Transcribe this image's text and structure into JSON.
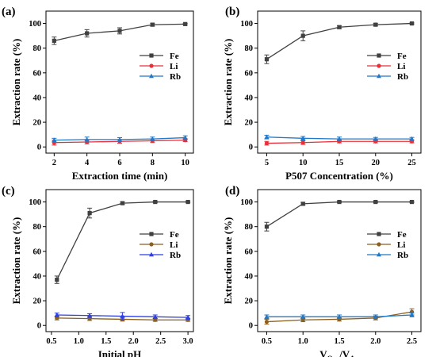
{
  "chart_data": [
    {
      "type": "line",
      "panel_label": "(a)",
      "xlabel": "Extraction time (min)",
      "ylabel": "Extraction rate (%)",
      "xlim": [
        1.5,
        10.5
      ],
      "ylim": [
        -5,
        110
      ],
      "xticks": [
        2,
        4,
        6,
        8,
        10
      ],
      "yticks": [
        0,
        20,
        40,
        60,
        80,
        100
      ],
      "x": [
        2,
        4,
        6,
        8,
        10
      ],
      "legend_position": "right-middle",
      "series": [
        {
          "name": "Fe",
          "color": "#404040",
          "marker": "square",
          "values": [
            86,
            92,
            94,
            99,
            99.5
          ],
          "errors": [
            3,
            3,
            2.5,
            1.2,
            0.6
          ]
        },
        {
          "name": "Li",
          "color": "#e8303a",
          "marker": "circle",
          "values": [
            3.5,
            4,
            4.5,
            5,
            5.5
          ],
          "errors": [
            2,
            1.5,
            1.5,
            1.5,
            1.2
          ]
        },
        {
          "name": "Rb",
          "color": "#1f78c8",
          "marker": "triangle",
          "values": [
            5.5,
            6,
            6,
            6.5,
            7.5
          ],
          "errors": [
            1.5,
            2,
            1.5,
            1.5,
            1.5
          ]
        }
      ]
    },
    {
      "type": "line",
      "panel_label": "(b)",
      "xlabel": "P507 Concentration (%)",
      "ylabel": "Extraction rate (%)",
      "xlim": [
        3.75,
        26.25
      ],
      "ylim": [
        -5,
        110
      ],
      "xticks": [
        5,
        10,
        15,
        20,
        25
      ],
      "yticks": [
        0,
        20,
        40,
        60,
        80,
        100
      ],
      "x": [
        5,
        10,
        15,
        20,
        25
      ],
      "legend_position": "right-middle",
      "series": [
        {
          "name": "Fe",
          "color": "#404040",
          "marker": "square",
          "values": [
            71,
            90,
            97,
            99,
            100
          ],
          "errors": [
            3.5,
            4,
            1.2,
            1,
            0.5
          ]
        },
        {
          "name": "Li",
          "color": "#e8303a",
          "marker": "circle",
          "values": [
            3,
            3.5,
            4.5,
            4.5,
            4.5
          ],
          "errors": [
            1.5,
            1.5,
            1.2,
            1.2,
            1.2
          ]
        },
        {
          "name": "Rb",
          "color": "#1f78c8",
          "marker": "triangle",
          "values": [
            8,
            7,
            6.5,
            6.5,
            6.5
          ],
          "errors": [
            1.5,
            1.5,
            1.5,
            1.2,
            1.2
          ]
        }
      ]
    },
    {
      "type": "line",
      "panel_label": "(c)",
      "xlabel": "Initial pH",
      "ylabel": "Extraction rate (%)",
      "xlim": [
        0.4,
        3.1
      ],
      "ylim": [
        -5,
        110
      ],
      "xticks": [
        0.5,
        1.0,
        1.5,
        2.0,
        2.5,
        3.0
      ],
      "yticks": [
        0,
        20,
        40,
        60,
        80,
        100
      ],
      "x": [
        0.6,
        1.2,
        1.8,
        2.4,
        3.0
      ],
      "legend_position": "right-middle",
      "series": [
        {
          "name": "Fe",
          "color": "#404040",
          "marker": "square",
          "values": [
            37,
            91,
            99,
            100,
            100
          ],
          "errors": [
            3,
            4,
            1,
            0.5,
            0.5
          ]
        },
        {
          "name": "Li",
          "color": "#8b6020",
          "marker": "circle",
          "values": [
            6,
            5.5,
            5,
            4.5,
            4.5
          ],
          "errors": [
            1.5,
            1.5,
            1.5,
            1.2,
            1.2
          ]
        },
        {
          "name": "Rb",
          "color": "#2f3fe0",
          "marker": "triangle",
          "values": [
            8.5,
            8,
            7.5,
            7,
            6.5
          ],
          "errors": [
            1.5,
            1.5,
            3,
            1.5,
            1.5
          ]
        }
      ]
    },
    {
      "type": "line",
      "panel_label": "(d)",
      "xlabel": "V_Org/V_Aq",
      "ylabel": "Extraction rate (%)",
      "xlim": [
        0.375,
        2.625
      ],
      "ylim": [
        -5,
        110
      ],
      "xticks": [
        0.5,
        1.0,
        1.5,
        2.0,
        2.5
      ],
      "yticks": [
        0,
        20,
        40,
        60,
        80,
        100
      ],
      "x": [
        0.5,
        1.0,
        1.5,
        2.0,
        2.5
      ],
      "legend_position": "right-middle",
      "series": [
        {
          "name": "Fe",
          "color": "#404040",
          "marker": "square",
          "values": [
            80,
            98.5,
            100,
            100,
            100
          ],
          "errors": [
            3.5,
            1.2,
            0.5,
            0.5,
            0.5
          ]
        },
        {
          "name": "Li",
          "color": "#8b6020",
          "marker": "circle",
          "values": [
            3,
            4.5,
            5,
            6,
            11
          ],
          "errors": [
            2,
            1.5,
            1.5,
            1.5,
            2.5
          ]
        },
        {
          "name": "Rb",
          "color": "#1f78c8",
          "marker": "triangle",
          "values": [
            7,
            7,
            7,
            7,
            8.5
          ],
          "errors": [
            1.5,
            1.5,
            1.5,
            1.5,
            1.5
          ]
        }
      ]
    }
  ]
}
